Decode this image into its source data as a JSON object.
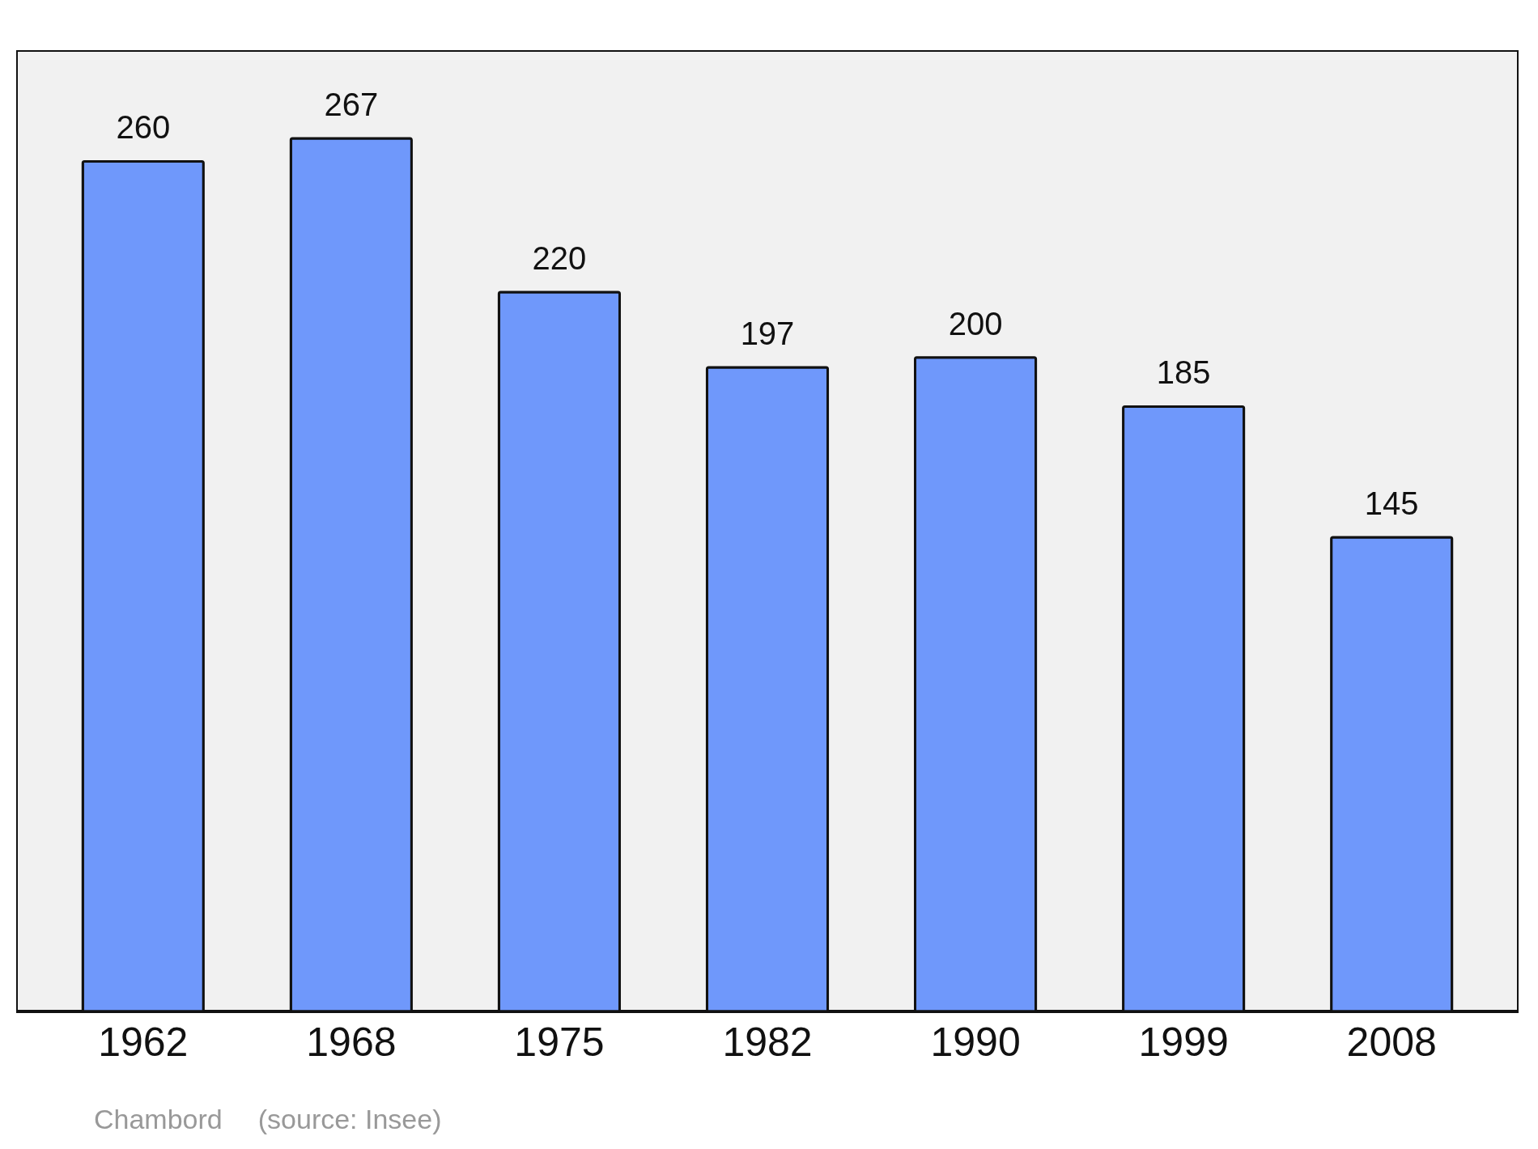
{
  "chart_data": {
    "type": "bar",
    "categories": [
      "1962",
      "1968",
      "1975",
      "1982",
      "1990",
      "1999",
      "2008"
    ],
    "values": [
      260,
      267,
      220,
      197,
      200,
      185,
      145
    ],
    "color": "#6f98fb",
    "ylim": [
      0,
      294
    ],
    "data_labels": true,
    "annotations": [
      "Chambord",
      "(source: Insee)"
    ]
  }
}
